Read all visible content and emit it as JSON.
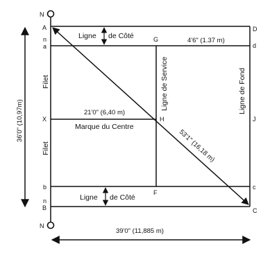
{
  "points": {
    "N_top": "N",
    "A": "A",
    "n_top": "n",
    "a": "a",
    "X": "X",
    "b": "b",
    "n_bottom": "n",
    "B": "B",
    "N_bottom": "N",
    "D": "D",
    "d": "d",
    "G": "G",
    "H": "H",
    "J": "J",
    "F": "F",
    "c": "c",
    "C": "C"
  },
  "labels": {
    "side_line_top_left": "Ligne",
    "side_line_top_right": "de Côté",
    "side_line_bottom_left": "Ligne",
    "side_line_bottom_right": "de Côté",
    "service_line": "Ligne de Service",
    "base_line": "Ligne de Fond",
    "center_mark": "Marque du Centre",
    "net_top": "Filet",
    "net_bottom": "Filet"
  },
  "dimensions": {
    "alley_width": "4'6\" (1.37 m)",
    "service_length": "21'0\" (6,40 m)",
    "diagonal": "53'1\" (16,18 m)",
    "court_width": "36'0\" (10,97m)",
    "court_length": "39'0\" (11,885 m)"
  }
}
